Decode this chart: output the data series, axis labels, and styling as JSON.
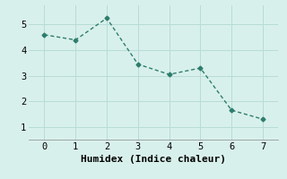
{
  "x": [
    0,
    1,
    2,
    3,
    4,
    5,
    6,
    7
  ],
  "y": [
    4.6,
    4.4,
    5.25,
    3.45,
    3.05,
    3.3,
    1.65,
    1.3
  ],
  "line_color": "#2e7d6e",
  "marker": "D",
  "marker_size": 2.5,
  "linewidth": 1.0,
  "xlabel": "Humidex (Indice chaleur)",
  "xlim": [
    -0.5,
    7.5
  ],
  "ylim": [
    0.5,
    5.75
  ],
  "yticks": [
    1,
    2,
    3,
    4,
    5
  ],
  "xticks": [
    0,
    1,
    2,
    3,
    4,
    5,
    6,
    7
  ],
  "background_color": "#d8f0eb",
  "grid_color": "#b8dcd6",
  "xlabel_fontsize": 8,
  "tick_fontsize": 7.5
}
